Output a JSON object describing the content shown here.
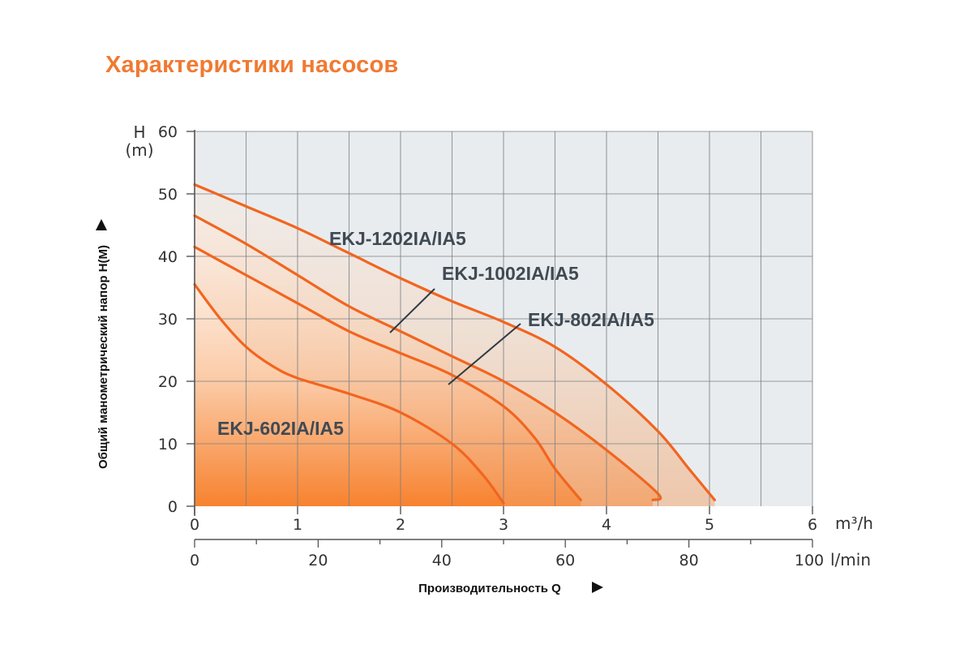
{
  "title": "Характеристики насосов",
  "chart_data": {
    "type": "line",
    "title": "Характеристики насосов",
    "y_axis": {
      "label": "Общий манометрический напор H(M)",
      "name": "H",
      "unit": "(m)",
      "ylim": [
        0,
        60
      ],
      "ticks": [
        "0",
        "10",
        "20",
        "30",
        "40",
        "50",
        "60"
      ]
    },
    "x_axis_primary": {
      "label": "Производительность Q",
      "unit": "m³/h",
      "xlim": [
        0,
        6
      ],
      "ticks": [
        "0",
        "1",
        "2",
        "3",
        "4",
        "5",
        "6"
      ]
    },
    "x_axis_secondary": {
      "unit": "l/min",
      "xlim": [
        0,
        100
      ],
      "ticks": [
        "0",
        "20",
        "40",
        "60",
        "80",
        "100"
      ]
    },
    "grid": true,
    "series": [
      {
        "name": "EKJ-1202IA/IA5",
        "x": [
          0,
          0.5,
          1,
          1.5,
          2,
          2.5,
          3,
          3.5,
          4,
          4.5,
          4.8,
          5.05
        ],
        "y": [
          51.5,
          48,
          44.5,
          40.5,
          36.5,
          32.8,
          29.5,
          25.5,
          19.5,
          12,
          6,
          1
        ]
      },
      {
        "name": "EKJ-1002IA/IA5",
        "x": [
          0,
          0.5,
          1,
          1.5,
          2,
          2.5,
          3,
          3.5,
          4,
          4.5,
          4.45
        ],
        "y": [
          46.5,
          42,
          37,
          32,
          28,
          24,
          20,
          15,
          9,
          2,
          1
        ]
      },
      {
        "name": "EKJ-802IA/IA5",
        "x": [
          0,
          0.5,
          1,
          1.5,
          2,
          2.5,
          3,
          3.3,
          3.5,
          3.75
        ],
        "y": [
          41.5,
          37,
          32.5,
          28,
          24.5,
          21,
          16,
          11,
          6,
          1
        ]
      },
      {
        "name": "EKJ-602IA/IA5",
        "x": [
          0,
          0.25,
          0.5,
          0.75,
          1,
          1.5,
          2,
          2.5,
          2.8,
          3.0
        ],
        "y": [
          35.5,
          30,
          25.5,
          22.5,
          20.5,
          18,
          15,
          10,
          5,
          0.5
        ]
      }
    ]
  },
  "colors": {
    "curve": "#f2651f",
    "plot_bg": "#e9ecee",
    "grid": "#7a7f84",
    "fill_light": "#fde6d6",
    "fill_dark": "#f7802f",
    "title": "#f07a32"
  }
}
